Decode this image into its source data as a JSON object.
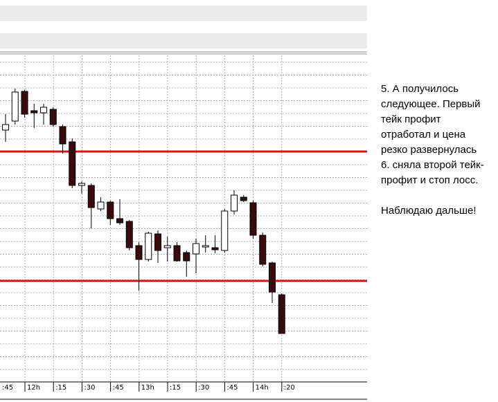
{
  "chart_data": {
    "type": "candlestick",
    "open": [
      362,
      375,
      418,
      390,
      387,
      392,
      367,
      345,
      282,
      282,
      248,
      258,
      234,
      230,
      195,
      175,
      212,
      192,
      195,
      185,
      183,
      193,
      192,
      188,
      245,
      265,
      257,
      210,
      170,
      124
    ],
    "close": [
      370,
      417,
      385,
      387,
      395,
      370,
      342,
      282,
      285,
      250,
      258,
      234,
      228,
      192,
      175,
      213,
      188,
      195,
      173,
      173,
      198,
      195,
      189,
      245,
      268,
      260,
      210,
      168,
      128,
      68
    ],
    "high": [
      385,
      422,
      420,
      400,
      400,
      395,
      370,
      350,
      288,
      285,
      265,
      260,
      262,
      232,
      200,
      215,
      217,
      208,
      200,
      188,
      205,
      210,
      210,
      248,
      275,
      268,
      260,
      214,
      172,
      126
    ],
    "low": [
      345,
      370,
      380,
      365,
      370,
      367,
      328,
      278,
      270,
      220,
      245,
      225,
      225,
      188,
      130,
      172,
      170,
      172,
      172,
      150,
      155,
      185,
      184,
      185,
      240,
      258,
      205,
      165,
      112,
      68
    ],
    "up_color": "#ffffff",
    "down_color": "#3b0b0b",
    "levels": [
      331,
      144
    ],
    "level_color": "#e01010",
    "ylim": [
      0,
      470
    ],
    "x_labels": [
      ":45",
      "12h",
      ":15",
      ":30",
      ":45",
      "13h",
      ":15",
      ":30",
      ":45",
      "14h",
      ":20"
    ]
  },
  "note": {
    "paragraphs": [
      [
        "5. А получилось",
        "следующее. Первый",
        "тейк профит",
        "отработал и цена",
        "резко развернулась",
        "6. сняла второй тейк-",
        "профит и стоп лосс."
      ],
      [
        "Наблюдаю дальше!"
      ]
    ]
  }
}
